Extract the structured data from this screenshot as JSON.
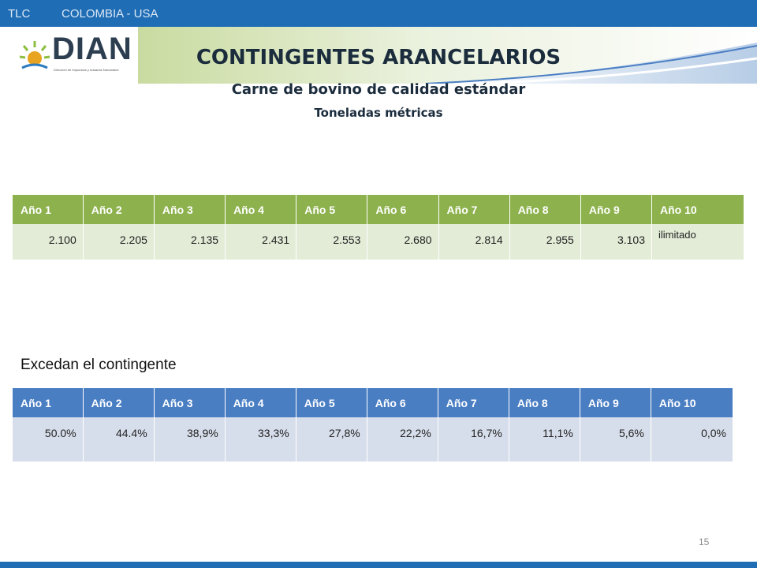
{
  "header": {
    "tag": "TLC",
    "country": "COLOMBIA - USA"
  },
  "logo": {
    "name": "DIAN",
    "subtitle": "Dirección de Impuestos y Aduanas Nacionales"
  },
  "titles": {
    "main": "CONTINGENTES ARANCELARIOS",
    "sub": "Carne de bovino de calidad estándar",
    "unit": "Toneladas métricas"
  },
  "table1": {
    "headers": [
      "Año 1",
      "Año 2",
      "Año 3",
      "Año 4",
      "Año 5",
      "Año 6",
      "Año 7",
      "Año 8",
      "Año 9",
      "Año  10"
    ],
    "values": [
      "2.100",
      "2.205",
      "2.135",
      "2.431",
      "2.553",
      "2.680",
      "2.814",
      "2.955",
      "3.103",
      "ilimitado"
    ]
  },
  "section2": {
    "label": "Excedan el contingente"
  },
  "table2": {
    "headers": [
      "Año 1",
      "Año 2",
      "Año 3",
      "Año 4",
      "Año 5",
      "Año 6",
      "Año 7",
      "Año 8",
      "Año 9",
      "Año  10"
    ],
    "values": [
      "50.0%",
      "44.4%",
      "38,9%",
      "33,3%",
      "27,8%",
      "22,2%",
      "16,7%",
      "11,1%",
      "5,6%",
      "0,0%"
    ]
  },
  "footer": {
    "page": "15"
  },
  "colors": {
    "topbar": "#1f6db5",
    "green_header": "#8db24d",
    "blue_header": "#4a7ec3"
  }
}
